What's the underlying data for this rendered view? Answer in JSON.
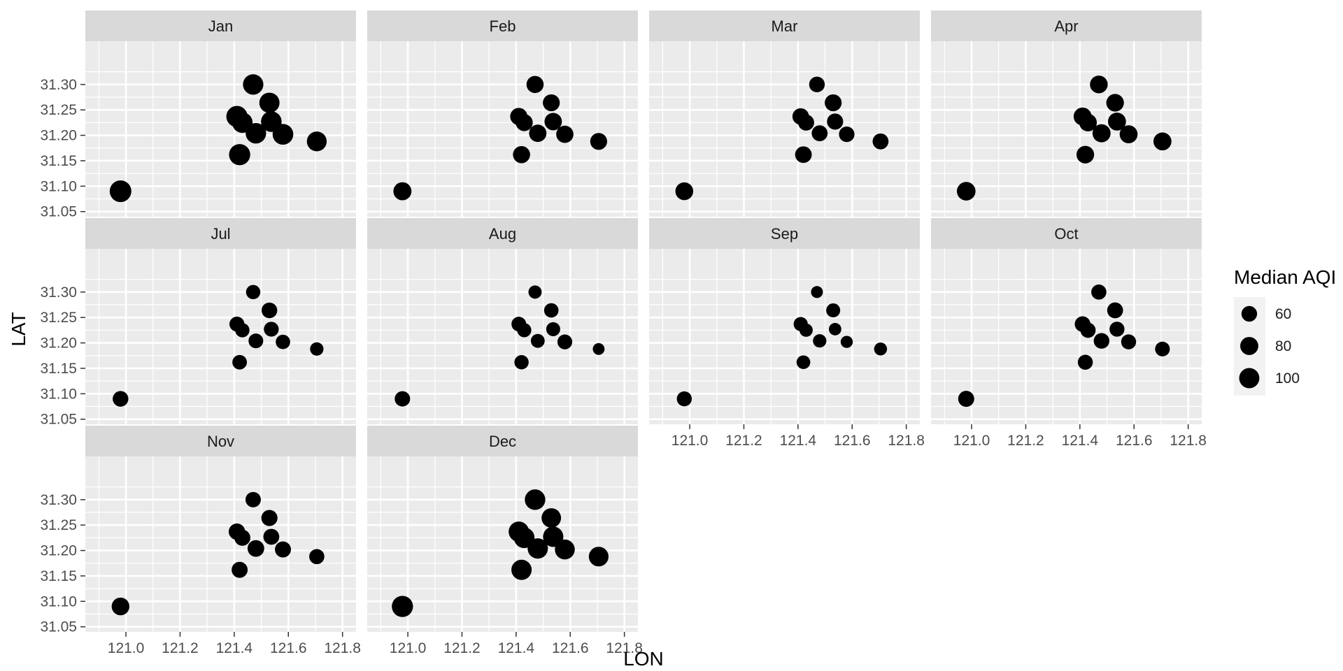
{
  "chart_data": {
    "type": "scatter",
    "facet_by": "month",
    "xlabel": "LON",
    "ylabel": "LAT",
    "xlim": [
      120.85,
      121.85
    ],
    "ylim": [
      31.04,
      31.385
    ],
    "x_ticks": [
      121.0,
      121.2,
      121.4,
      121.6,
      121.8
    ],
    "x_tick_labels": [
      "121.0",
      "121.2",
      "121.4",
      "121.6",
      "121.8"
    ],
    "y_ticks": [
      31.05,
      31.1,
      31.15,
      31.2,
      31.25,
      31.3
    ],
    "y_tick_labels": [
      "31.05",
      "31.10",
      "31.15",
      "31.20",
      "31.25",
      "31.30"
    ],
    "grid": true,
    "legend_position": "right",
    "size_legend": {
      "title": "Median AQI",
      "entries": [
        {
          "label": "60",
          "value": 60
        },
        {
          "label": "80",
          "value": 80
        },
        {
          "label": "100",
          "value": 100
        }
      ]
    },
    "size_range": [
      35,
      112
    ],
    "point_color": "#000000",
    "panel_background": "#ebebeb",
    "strip_background": "#d9d9d9",
    "stations": [
      {
        "lon": 120.98,
        "lat": 31.09
      },
      {
        "lon": 121.42,
        "lat": 31.162
      },
      {
        "lon": 121.41,
        "lat": 31.237
      },
      {
        "lon": 121.43,
        "lat": 31.225
      },
      {
        "lon": 121.47,
        "lat": 31.3
      },
      {
        "lon": 121.48,
        "lat": 31.204
      },
      {
        "lon": 121.53,
        "lat": 31.264
      },
      {
        "lon": 121.537,
        "lat": 31.227
      },
      {
        "lon": 121.58,
        "lat": 31.202
      },
      {
        "lon": 121.705,
        "lat": 31.188
      }
    ],
    "panels": [
      {
        "month": "Jan",
        "aqi": [
          115,
          110,
          110,
          103,
          102,
          103,
          100,
          104,
          105,
          96
        ]
      },
      {
        "month": "Feb",
        "aqi": [
          80,
          72,
          73,
          71,
          72,
          74,
          70,
          74,
          73,
          70
        ]
      },
      {
        "month": "Mar",
        "aqi": [
          78,
          68,
          67,
          63,
          60,
          62,
          70,
          64,
          59,
          62
        ]
      },
      {
        "month": "Apr",
        "aqi": [
          85,
          76,
          79,
          76,
          77,
          80,
          76,
          79,
          79,
          79
        ]
      },
      {
        "month": "Jul",
        "aqi": [
          60,
          52,
          55,
          50,
          50,
          53,
          60,
          54,
          51,
          44
        ]
      },
      {
        "month": "Aug",
        "aqi": [
          58,
          50,
          53,
          49,
          43,
          47,
          51,
          48,
          54,
          34
        ]
      },
      {
        "month": "Sep",
        "aqi": [
          55,
          46,
          49,
          43,
          35,
          44,
          48,
          38,
          36,
          41
        ]
      },
      {
        "month": "Oct",
        "aqi": [
          63,
          55,
          60,
          57,
          56,
          60,
          62,
          55,
          55,
          53
        ]
      },
      {
        "month": "Nov",
        "aqi": [
          77,
          63,
          66,
          63,
          58,
          68,
          64,
          62,
          63,
          56
        ]
      },
      {
        "month": "Dec",
        "aqi": [
          110,
          101,
          101,
          104,
          103,
          101,
          93,
          101,
          97,
          95
        ]
      }
    ]
  }
}
